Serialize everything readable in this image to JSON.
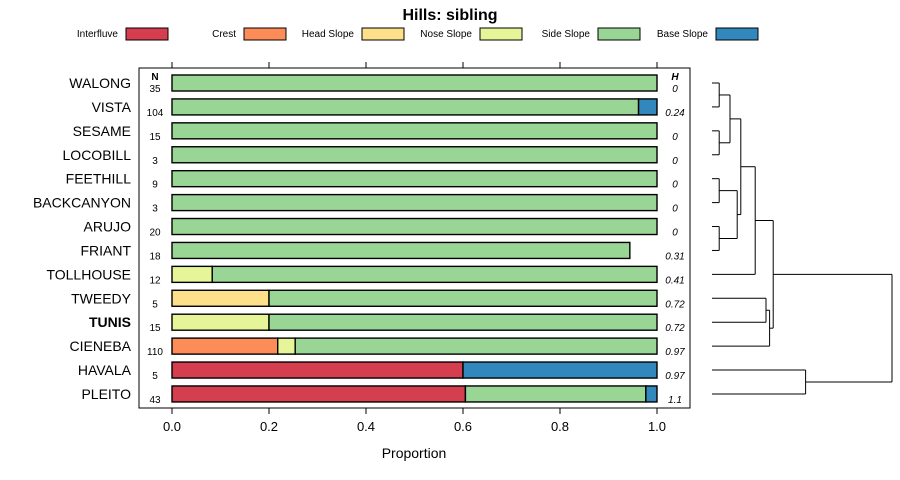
{
  "chart_data": {
    "type": "bar",
    "stacked": true,
    "orientation": "horizontal",
    "title": "Hills: sibling",
    "xlabel": "Proportion",
    "xlim": [
      0,
      1
    ],
    "xticks": [
      "0.0",
      "0.2",
      "0.4",
      "0.6",
      "0.8",
      "1.0"
    ],
    "n_header": "N",
    "h_header": "H",
    "highlight": "TUNIS",
    "legend": [
      {
        "name": "Interfluve",
        "color": "#d53e4f"
      },
      {
        "name": "Crest",
        "color": "#fc8d59"
      },
      {
        "name": "Head Slope",
        "color": "#fee08b"
      },
      {
        "name": "Nose Slope",
        "color": "#e6f598"
      },
      {
        "name": "Side Slope",
        "color": "#99d594"
      },
      {
        "name": "Base Slope",
        "color": "#3288bd"
      }
    ],
    "categories": [
      "WALONG",
      "VISTA",
      "SESAME",
      "LOCOBILL",
      "FEETHILL",
      "BACKCANYON",
      "ARUJO",
      "FRIANT",
      "TOLLHOUSE",
      "TWEEDY",
      "TUNIS",
      "CIENEBA",
      "HAVALA",
      "PLEITO"
    ],
    "n": [
      "35",
      "104",
      "15",
      "3",
      "9",
      "3",
      "20",
      "18",
      "12",
      "5",
      "15",
      "110",
      "5",
      "43"
    ],
    "h": [
      "0",
      "0.24",
      "0",
      "0",
      "0",
      "0",
      "0",
      "0.31",
      "0.41",
      "0.72",
      "0.72",
      "0.97",
      "0.97",
      "1.1"
    ],
    "series": [
      {
        "name": "Interfluve",
        "values": [
          0,
          0,
          0,
          0,
          0,
          0,
          0,
          0,
          0,
          0,
          0,
          0,
          0.6,
          0.605
        ]
      },
      {
        "name": "Crest",
        "values": [
          0,
          0,
          0,
          0,
          0,
          0,
          0,
          0,
          0,
          0,
          0,
          0.218,
          0,
          0
        ]
      },
      {
        "name": "Head Slope",
        "values": [
          0,
          0,
          0,
          0,
          0,
          0,
          0,
          0,
          0,
          0.2,
          0,
          0,
          0,
          0
        ]
      },
      {
        "name": "Nose Slope",
        "values": [
          0,
          0,
          0,
          0,
          0,
          0,
          0,
          0,
          0.083,
          0,
          0.2,
          0.036,
          0,
          0
        ]
      },
      {
        "name": "Side Slope",
        "values": [
          1,
          0.962,
          1,
          1,
          1,
          1,
          1,
          0.944,
          0.917,
          0.8,
          0.8,
          0.746,
          0,
          0.372
        ]
      },
      {
        "name": "Base Slope",
        "values": [
          0,
          0.038,
          0,
          0,
          0,
          0,
          0,
          0,
          0,
          0,
          0,
          0,
          0.4,
          0.023
        ]
      }
    ],
    "dendrogram": {
      "height_max": 0.5,
      "merges": [
        [
          -1,
          -2,
          0.02
        ],
        [
          -3,
          -4,
          0.02
        ],
        [
          -5,
          -6,
          0.02
        ],
        [
          -7,
          -8,
          0.02
        ],
        [
          1,
          2,
          0.05
        ],
        [
          3,
          4,
          0.07
        ],
        [
          5,
          6,
          0.08
        ],
        [
          7,
          -9,
          0.12
        ],
        [
          -10,
          -11,
          0.15
        ],
        [
          9,
          -12,
          0.16
        ],
        [
          8,
          10,
          0.17
        ],
        [
          -13,
          -14,
          0.26
        ],
        [
          11,
          12,
          0.5
        ]
      ]
    }
  }
}
